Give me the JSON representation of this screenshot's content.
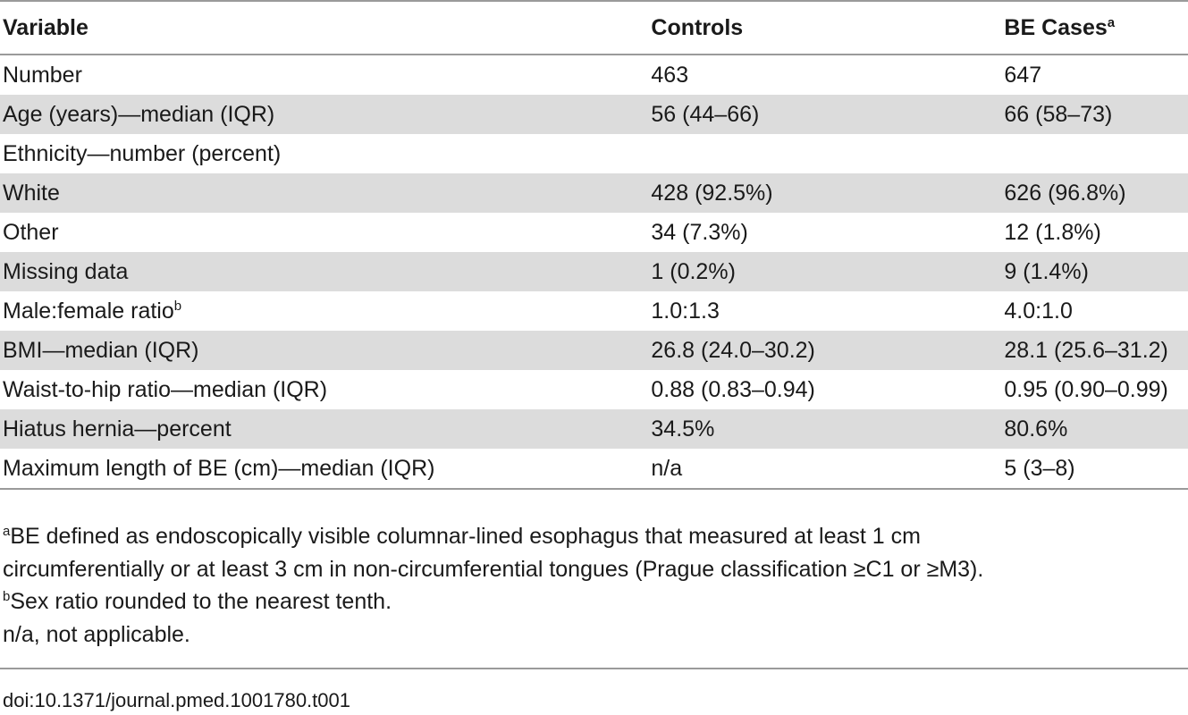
{
  "table": {
    "headers": {
      "variable": "Variable",
      "controls": "Controls",
      "cases": "BE Cases",
      "cases_sup": "a"
    },
    "rows": [
      {
        "variable": "Number",
        "variable_sup": "",
        "controls": "463",
        "cases": "647"
      },
      {
        "variable": "Age (years)—median (IQR)",
        "variable_sup": "",
        "controls": "56 (44–66)",
        "cases": "66 (58–73)"
      },
      {
        "variable": "Ethnicity—number (percent)",
        "variable_sup": "",
        "controls": "",
        "cases": ""
      },
      {
        "variable": "White",
        "variable_sup": "",
        "controls": "428 (92.5%)",
        "cases": "626 (96.8%)"
      },
      {
        "variable": "Other",
        "variable_sup": "",
        "controls": "34 (7.3%)",
        "cases": "12 (1.8%)"
      },
      {
        "variable": "Missing data",
        "variable_sup": "",
        "controls": "1 (0.2%)",
        "cases": "9 (1.4%)"
      },
      {
        "variable": "Male:female ratio",
        "variable_sup": "b",
        "controls": "1.0:1.3",
        "cases": "4.0:1.0"
      },
      {
        "variable": "BMI—median (IQR)",
        "variable_sup": "",
        "controls": "26.8 (24.0–30.2)",
        "cases": "28.1 (25.6–31.2)"
      },
      {
        "variable": "Waist-to-hip ratio—median (IQR)",
        "variable_sup": "",
        "controls": "0.88 (0.83–0.94)",
        "cases": "0.95 (0.90–0.99)"
      },
      {
        "variable": "Hiatus hernia—percent",
        "variable_sup": "",
        "controls": "34.5%",
        "cases": "80.6%"
      },
      {
        "variable": "Maximum length of BE (cm)—median (IQR)",
        "variable_sup": "",
        "controls": "n/a",
        "cases": "5 (3–8)"
      }
    ]
  },
  "footnotes": {
    "a_marker": "a",
    "a_line1": "BE defined as endoscopically visible columnar-lined esophagus that measured at least 1 cm",
    "a_line2": "circumferentially or at least 3 cm in non-circumferential tongues (Prague classification ≥C1 or ≥M3).",
    "b_marker": "b",
    "b_text": "Sex ratio rounded to the nearest tenth.",
    "na_text": "n/a, not applicable."
  },
  "doi": "doi:10.1371/journal.pmed.1001780.t001"
}
